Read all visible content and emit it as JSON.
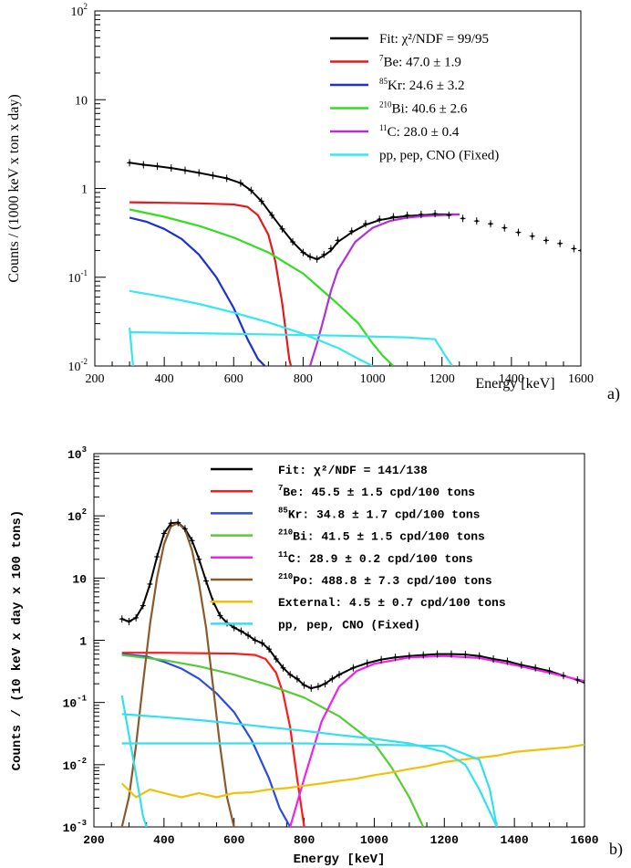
{
  "panel_labels": [
    "a)",
    "b)"
  ],
  "chart_data": [
    {
      "type": "line",
      "panel": "a)",
      "xlabel": "Energy [keV]",
      "ylabel": "Counts / (1000 keV x ton x day)",
      "xlim": [
        200,
        1600
      ],
      "ylim": [
        0.01,
        100
      ],
      "yscale": "log",
      "x_ticks": [
        200,
        400,
        600,
        800,
        1000,
        1200,
        1400,
        1600
      ],
      "y_ticks": [
        {
          "value": 0.01,
          "base": "10",
          "exp": "-2"
        },
        {
          "value": 0.1,
          "base": "10",
          "exp": "-1"
        },
        {
          "value": 1,
          "base": "1",
          "exp": ""
        },
        {
          "value": 10,
          "base": "10",
          "exp": ""
        },
        {
          "value": 100,
          "base": "10",
          "exp": "2"
        }
      ],
      "legend_position": "top-right",
      "legend": [
        {
          "sup": "",
          "text": "Fit: χ²/NDF = 99/95",
          "color": "#000000"
        },
        {
          "sup": "7",
          "text": "Be: 47.0 ± 1.9",
          "color": "#e41a1c"
        },
        {
          "sup": "85",
          "text": "Kr: 24.6 ± 3.2",
          "color": "#1f2fd0"
        },
        {
          "sup": "210",
          "text": "Bi: 40.6 ± 2.6",
          "color": "#33dd22"
        },
        {
          "sup": "11",
          "text": "C: 28.0 ± 0.4",
          "color": "#b030d8"
        },
        {
          "sup": "",
          "text": "pp, pep, CNO (Fixed)",
          "color": "#33e8f0"
        }
      ],
      "data_points": {
        "x": [
          300,
          340,
          380,
          420,
          460,
          500,
          540,
          580,
          620,
          650,
          680,
          710,
          740,
          770,
          800,
          820,
          840,
          860,
          880,
          900,
          940,
          980,
          1020,
          1060,
          1100,
          1140,
          1180,
          1220,
          1260,
          1300,
          1340,
          1380,
          1420,
          1460,
          1500,
          1540,
          1580,
          1600
        ],
        "y": [
          1.95,
          1.85,
          1.78,
          1.7,
          1.6,
          1.5,
          1.4,
          1.3,
          1.15,
          0.95,
          0.72,
          0.5,
          0.35,
          0.25,
          0.19,
          0.17,
          0.16,
          0.18,
          0.21,
          0.26,
          0.33,
          0.4,
          0.45,
          0.48,
          0.5,
          0.51,
          0.52,
          0.5,
          0.46,
          0.43,
          0.4,
          0.36,
          0.32,
          0.29,
          0.26,
          0.24,
          0.21,
          0.2
        ],
        "color": "#000000"
      },
      "series": [
        {
          "component": "fit",
          "color": "#000000",
          "x": [
            300,
            340,
            380,
            420,
            460,
            500,
            540,
            580,
            620,
            650,
            680,
            710,
            740,
            770,
            800,
            820,
            840,
            860,
            880,
            900,
            940,
            980,
            1020,
            1060,
            1100,
            1140,
            1180,
            1220,
            1250
          ],
          "y": [
            1.95,
            1.85,
            1.78,
            1.7,
            1.6,
            1.5,
            1.4,
            1.3,
            1.15,
            0.95,
            0.72,
            0.5,
            0.35,
            0.25,
            0.19,
            0.17,
            0.16,
            0.175,
            0.2,
            0.25,
            0.32,
            0.39,
            0.44,
            0.47,
            0.49,
            0.5,
            0.51,
            0.51,
            0.51
          ]
        },
        {
          "component": "Be7",
          "color": "#e41a1c",
          "x": [
            300,
            400,
            500,
            600,
            640,
            670,
            700,
            720,
            740,
            760,
            765
          ],
          "y": [
            0.7,
            0.69,
            0.68,
            0.66,
            0.62,
            0.5,
            0.3,
            0.15,
            0.05,
            0.012,
            0.01
          ]
        },
        {
          "component": "Kr85",
          "color": "#1f2fd0",
          "x": [
            300,
            350,
            400,
            450,
            500,
            550,
            600,
            640,
            670,
            690
          ],
          "y": [
            0.47,
            0.42,
            0.35,
            0.27,
            0.18,
            0.1,
            0.045,
            0.02,
            0.012,
            0.01
          ]
        },
        {
          "component": "Bi210",
          "color": "#33dd22",
          "x": [
            300,
            400,
            500,
            600,
            700,
            800,
            900,
            960,
            1000,
            1030,
            1060
          ],
          "y": [
            0.58,
            0.48,
            0.38,
            0.28,
            0.19,
            0.11,
            0.05,
            0.03,
            0.018,
            0.013,
            0.01
          ]
        },
        {
          "component": "C11",
          "color": "#b030d8",
          "x": [
            820,
            840,
            860,
            880,
            900,
            950,
            1000,
            1050,
            1100,
            1150,
            1200,
            1250
          ],
          "y": [
            0.01,
            0.018,
            0.035,
            0.07,
            0.12,
            0.25,
            0.36,
            0.43,
            0.47,
            0.49,
            0.5,
            0.51
          ]
        },
        {
          "component": "pp",
          "color": "#33e8f0",
          "x": [
            300,
            310
          ],
          "y": [
            0.027,
            0.01
          ]
        },
        {
          "component": "pep",
          "color": "#33e8f0",
          "x": [
            300,
            600,
            900,
            1100,
            1180,
            1210,
            1230
          ],
          "y": [
            0.024,
            0.023,
            0.022,
            0.021,
            0.02,
            0.013,
            0.01
          ]
        },
        {
          "component": "CNO",
          "color": "#33e8f0",
          "x": [
            300,
            400,
            500,
            600,
            700,
            800,
            900,
            960,
            1000
          ],
          "y": [
            0.07,
            0.06,
            0.05,
            0.04,
            0.031,
            0.023,
            0.016,
            0.012,
            0.01
          ]
        }
      ]
    },
    {
      "type": "line",
      "panel": "b)",
      "xlabel": "Energy [keV]",
      "ylabel": "Counts / (10 keV x day x 100 tons)",
      "xlim": [
        200,
        1600
      ],
      "ylim": [
        0.001,
        1000
      ],
      "yscale": "log",
      "x_ticks": [
        200,
        400,
        600,
        800,
        1000,
        1200,
        1400,
        1600
      ],
      "y_ticks": [
        {
          "value": 0.001,
          "base": "10",
          "exp": "-3"
        },
        {
          "value": 0.01,
          "base": "10",
          "exp": "-2"
        },
        {
          "value": 0.1,
          "base": "10",
          "exp": "-1"
        },
        {
          "value": 1,
          "base": "1",
          "exp": ""
        },
        {
          "value": 10,
          "base": "10",
          "exp": ""
        },
        {
          "value": 100,
          "base": "10",
          "exp": "2"
        },
        {
          "value": 1000,
          "base": "10",
          "exp": "3"
        }
      ],
      "legend_position": "top-right",
      "legend": [
        {
          "sup": "",
          "text": "Fit: χ²/NDF = 141/138",
          "color": "#000000"
        },
        {
          "sup": "7",
          "text": "Be: 45.5 ± 1.5 cpd/100 tons",
          "color": "#ff1a1a"
        },
        {
          "sup": "85",
          "text": "Kr: 34.8 ± 1.7 cpd/100 tons",
          "color": "#2a4de0"
        },
        {
          "sup": "210",
          "text": "Bi: 41.5 ± 1.5 cpd/100 tons",
          "color": "#55cc33"
        },
        {
          "sup": "11",
          "text": "C: 28.9 ± 0.2 cpd/100 tons",
          "color": "#ee22ee"
        },
        {
          "sup": "210",
          "text": "Po: 488.8 ± 7.3 cpd/100 tons",
          "color": "#8b5a2b"
        },
        {
          "sup": "",
          "text": "External: 4.5 ± 0.7 cpd/100 tons",
          "color": "#eec10a"
        },
        {
          "sup": "",
          "text": "pp, pep, CNO (Fixed)",
          "color": "#33e0f0"
        }
      ],
      "data_points": {
        "x": [
          280,
          300,
          320,
          340,
          360,
          380,
          400,
          420,
          440,
          460,
          480,
          500,
          520,
          540,
          560,
          580,
          600,
          620,
          640,
          660,
          680,
          700,
          720,
          740,
          760,
          780,
          800,
          820,
          840,
          860,
          880,
          900,
          940,
          980,
          1020,
          1060,
          1100,
          1140,
          1180,
          1220,
          1260,
          1300,
          1340,
          1380,
          1420,
          1460,
          1500,
          1540,
          1580,
          1600
        ],
        "y": [
          2.2,
          2.0,
          2.3,
          3.6,
          8,
          22,
          52,
          76,
          78,
          62,
          40,
          20,
          9,
          4.2,
          2.5,
          1.9,
          1.6,
          1.4,
          1.2,
          1.0,
          0.9,
          0.72,
          0.5,
          0.36,
          0.28,
          0.24,
          0.19,
          0.17,
          0.18,
          0.2,
          0.24,
          0.28,
          0.36,
          0.43,
          0.49,
          0.53,
          0.56,
          0.58,
          0.6,
          0.6,
          0.59,
          0.56,
          0.5,
          0.46,
          0.4,
          0.36,
          0.32,
          0.27,
          0.23,
          0.21
        ],
        "color": "#000000"
      },
      "series": [
        {
          "component": "fit",
          "color": "#000000",
          "x": [
            280,
            300,
            320,
            340,
            360,
            380,
            400,
            420,
            440,
            460,
            480,
            500,
            520,
            540,
            560,
            580,
            600,
            620,
            640,
            660,
            680,
            700,
            720,
            740,
            760,
            780,
            800,
            820,
            840,
            860,
            880,
            900,
            940,
            980,
            1020,
            1060,
            1100,
            1140,
            1180,
            1220,
            1260,
            1300,
            1340,
            1380,
            1420,
            1460,
            1500,
            1540,
            1580,
            1600
          ],
          "y": [
            2.2,
            2.0,
            2.3,
            3.6,
            8,
            22,
            52,
            76,
            78,
            62,
            40,
            20,
            9,
            4.2,
            2.5,
            1.9,
            1.6,
            1.4,
            1.2,
            1.0,
            0.9,
            0.72,
            0.5,
            0.36,
            0.28,
            0.24,
            0.19,
            0.17,
            0.18,
            0.2,
            0.24,
            0.28,
            0.36,
            0.43,
            0.49,
            0.53,
            0.56,
            0.58,
            0.6,
            0.6,
            0.59,
            0.56,
            0.5,
            0.46,
            0.4,
            0.36,
            0.32,
            0.27,
            0.23,
            0.21
          ]
        },
        {
          "component": "Be7",
          "color": "#ff1a1a",
          "x": [
            280,
            400,
            500,
            600,
            660,
            690,
            720,
            740,
            760,
            780,
            800
          ],
          "y": [
            0.63,
            0.63,
            0.62,
            0.61,
            0.58,
            0.5,
            0.3,
            0.14,
            0.04,
            0.006,
            0.001
          ]
        },
        {
          "component": "Kr85",
          "color": "#2a4de0",
          "x": [
            280,
            350,
            400,
            450,
            500,
            550,
            600,
            650,
            700,
            730,
            760
          ],
          "y": [
            0.6,
            0.55,
            0.45,
            0.35,
            0.24,
            0.14,
            0.07,
            0.025,
            0.006,
            0.002,
            0.001
          ]
        },
        {
          "component": "Bi210",
          "color": "#55cc33",
          "x": [
            280,
            400,
            500,
            600,
            700,
            800,
            900,
            1000,
            1050,
            1100,
            1140
          ],
          "y": [
            0.58,
            0.48,
            0.38,
            0.28,
            0.19,
            0.12,
            0.06,
            0.022,
            0.009,
            0.003,
            0.001
          ]
        },
        {
          "component": "C11",
          "color": "#ee22ee",
          "x": [
            760,
            800,
            850,
            900,
            950,
            1000,
            1100,
            1200,
            1300,
            1400,
            1500,
            1600
          ],
          "y": [
            0.001,
            0.006,
            0.05,
            0.18,
            0.32,
            0.42,
            0.53,
            0.56,
            0.52,
            0.4,
            0.3,
            0.22
          ]
        },
        {
          "component": "Po210",
          "color": "#8b5a2b",
          "x": [
            280,
            300,
            320,
            340,
            360,
            380,
            400,
            420,
            440,
            460,
            480,
            500,
            520,
            540,
            560,
            580,
            600
          ],
          "y": [
            0.001,
            0.003,
            0.02,
            0.2,
            1.8,
            10,
            35,
            68,
            76,
            60,
            28,
            8,
            1.6,
            0.18,
            0.02,
            0.003,
            0.001
          ]
        },
        {
          "component": "External",
          "color": "#eec10a",
          "x": [
            280,
            320,
            360,
            400,
            450,
            500,
            550,
            600,
            650,
            700,
            750,
            800,
            850,
            900,
            950,
            1000,
            1050,
            1100,
            1150,
            1200,
            1250,
            1300,
            1350,
            1400,
            1450,
            1500,
            1550,
            1600
          ],
          "y": [
            0.005,
            0.003,
            0.004,
            0.0035,
            0.003,
            0.0035,
            0.003,
            0.0035,
            0.0036,
            0.004,
            0.0042,
            0.0046,
            0.005,
            0.0055,
            0.006,
            0.0068,
            0.0075,
            0.0085,
            0.0095,
            0.011,
            0.012,
            0.013,
            0.014,
            0.016,
            0.017,
            0.018,
            0.019,
            0.021
          ]
        },
        {
          "component": "pp",
          "color": "#33e0f0",
          "x": [
            280,
            300,
            320,
            340,
            350
          ],
          "y": [
            0.13,
            0.03,
            0.007,
            0.0015,
            0.001
          ]
        },
        {
          "component": "CNO",
          "color": "#33e0f0",
          "x": [
            280,
            400,
            500,
            600,
            700,
            800,
            900,
            1000,
            1100,
            1200,
            1260,
            1300,
            1350
          ],
          "y": [
            0.065,
            0.058,
            0.052,
            0.046,
            0.04,
            0.035,
            0.03,
            0.026,
            0.022,
            0.016,
            0.01,
            0.004,
            0.001
          ]
        },
        {
          "component": "pep",
          "color": "#33e0f0",
          "x": [
            280,
            400,
            600,
            800,
            1000,
            1200,
            1300,
            1330,
            1350
          ],
          "y": [
            0.022,
            0.022,
            0.022,
            0.022,
            0.021,
            0.02,
            0.012,
            0.004,
            0.001
          ]
        }
      ]
    }
  ]
}
